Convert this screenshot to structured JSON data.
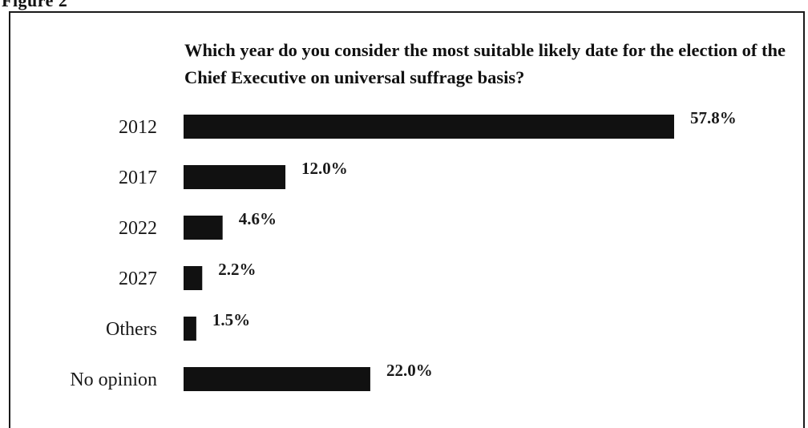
{
  "figure_label": "Figure 2",
  "chart_data": {
    "type": "bar",
    "orientation": "horizontal",
    "title": "Which year do you consider the most suitable likely date for the election of the Chief Executive on universal suffrage basis?",
    "categories": [
      "2012",
      "2017",
      "2022",
      "2027",
      "Others",
      "No opinion"
    ],
    "values": [
      57.8,
      12.0,
      4.6,
      2.2,
      1.5,
      22.0
    ],
    "value_labels": [
      "57.8%",
      "12.0%",
      "4.6%",
      "2.2%",
      "1.5%",
      "22.0%"
    ],
    "unit": "%",
    "xlim": [
      0,
      57.8
    ],
    "grid": false,
    "legend": "none",
    "bar_color": "#111111"
  }
}
